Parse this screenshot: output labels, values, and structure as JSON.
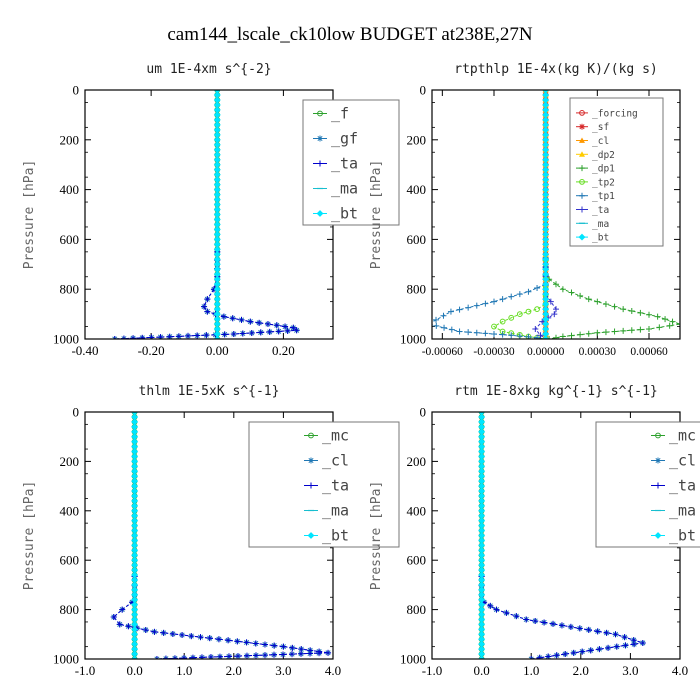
{
  "figure": {
    "title": "cam144_lscale_ck10low  BUDGET at238E,27N"
  },
  "chart_data": [
    {
      "type": "line",
      "title": "um  1E-4xm s^{-2}",
      "ylabel": "Pressure [hPa]",
      "xlim": [
        -0.4,
        0.35
      ],
      "ylim": [
        0,
        1000
      ],
      "y_reversed": true,
      "xticks": [
        -0.4,
        -0.2,
        0.0,
        0.2
      ],
      "xtick_labels": [
        "-0.40",
        "-0.20",
        "0.00",
        "0.20"
      ],
      "yticks": [
        0,
        200,
        400,
        600,
        800,
        1000
      ],
      "legend_style": "large",
      "series": [
        {
          "name": "_f",
          "color": "#2ca02c",
          "marker": "circle",
          "x": [
            0,
            0
          ],
          "y": [
            0,
            1000
          ]
        },
        {
          "name": "_gf",
          "color": "#1f77b4",
          "marker": "star",
          "x": [
            0,
            0,
            0,
            0,
            0,
            -0.01,
            -0.03,
            -0.04,
            -0.03,
            0.02,
            0.1,
            0.18,
            0.23,
            0.24,
            0.05,
            -0.31
          ],
          "y": [
            0,
            300,
            500,
            650,
            750,
            800,
            840,
            870,
            890,
            910,
            930,
            945,
            955,
            965,
            980,
            1000
          ]
        },
        {
          "name": "_ta",
          "color": "#0000cc",
          "marker": "plus",
          "x": [
            0,
            0,
            0,
            0,
            0,
            -0.01,
            -0.03,
            -0.04,
            -0.03,
            0.02,
            0.1,
            0.18,
            0.23,
            0.24,
            0.05,
            -0.31
          ],
          "y": [
            0,
            300,
            500,
            650,
            750,
            800,
            840,
            870,
            890,
            910,
            930,
            945,
            955,
            965,
            980,
            1000
          ]
        },
        {
          "name": "_ma",
          "color": "#17becf",
          "marker": "dash",
          "x": [
            0,
            0
          ],
          "y": [
            0,
            1000
          ]
        },
        {
          "name": "_bt",
          "color": "#00e5ff",
          "marker": "diamond",
          "x": [
            0,
            0
          ],
          "y": [
            0,
            1000
          ]
        }
      ]
    },
    {
      "type": "line",
      "title": "rtpthlp  1E-4x(kg K)/(kg s)",
      "ylabel": "Pressure [hPa]",
      "xlim": [
        -0.00066,
        0.00078
      ],
      "ylim": [
        0,
        1000
      ],
      "y_reversed": true,
      "xticks": [
        -0.0006,
        -0.0003,
        0.0,
        0.0003,
        0.0006
      ],
      "xtick_labels": [
        "-0.00060",
        "-0.00030",
        "0.00000",
        "0.00030",
        "0.00060"
      ],
      "yticks": [
        0,
        200,
        400,
        600,
        800,
        1000
      ],
      "legend_style": "small",
      "series": [
        {
          "name": "_forcing",
          "color": "#d62728",
          "marker": "circle",
          "x": [
            0,
            0
          ],
          "y": [
            0,
            1000
          ]
        },
        {
          "name": "_sf",
          "color": "#d62728",
          "marker": "star",
          "x": [
            0,
            0
          ],
          "y": [
            0,
            1000
          ]
        },
        {
          "name": "_cl",
          "color": "#ff9900",
          "marker": "triangle",
          "x": [
            0,
            0
          ],
          "y": [
            0,
            1000
          ]
        },
        {
          "name": "_dp2",
          "color": "#ffcc00",
          "marker": "triangle",
          "x": [
            0,
            0
          ],
          "y": [
            0,
            1000
          ]
        },
        {
          "name": "_dp1",
          "color": "#2ca02c",
          "marker": "plus",
          "x": [
            0,
            0.0,
            2e-05,
            0.0001,
            0.00025,
            0.00045,
            0.00065,
            0.00078,
            0.0006,
            0.0003,
            0.0001,
            2e-05
          ],
          "y": [
            0,
            720,
            760,
            800,
            840,
            880,
            910,
            940,
            960,
            975,
            990,
            1000
          ]
        },
        {
          "name": "_tp2",
          "color": "#66dd22",
          "marker": "circle",
          "x": [
            0,
            0,
            -5e-05,
            -0.00015,
            -0.00025,
            -0.0003,
            -0.00025,
            -0.0001,
            0
          ],
          "y": [
            0,
            860,
            880,
            900,
            930,
            950,
            970,
            990,
            1000
          ]
        },
        {
          "name": "_tp1",
          "color": "#1f77b4",
          "marker": "plus",
          "x": [
            0,
            0,
            -0.0001,
            -0.0003,
            -0.00055,
            -0.00068,
            -0.0005,
            -0.0002,
            -5e-05,
            0
          ],
          "y": [
            0,
            780,
            810,
            850,
            890,
            940,
            970,
            985,
            995,
            1000
          ]
        },
        {
          "name": "_ta",
          "color": "#3333cc",
          "marker": "plus",
          "x": [
            0,
            0,
            3e-05,
            6e-05,
            5e-05,
            -2e-05,
            -6e-05,
            -3e-05,
            0
          ],
          "y": [
            0,
            820,
            850,
            880,
            900,
            930,
            960,
            985,
            1000
          ]
        },
        {
          "name": "_ma",
          "color": "#17becf",
          "marker": "dash",
          "x": [
            0,
            0
          ],
          "y": [
            0,
            1000
          ]
        },
        {
          "name": "_bt",
          "color": "#00e5ff",
          "marker": "diamond",
          "x": [
            0,
            0
          ],
          "y": [
            0,
            1000
          ]
        }
      ]
    },
    {
      "type": "line",
      "title": "thlm  1E-5xK s^{-1}",
      "ylabel": "Pressure [hPa]",
      "xlim": [
        -1.0,
        4.0
      ],
      "ylim": [
        0,
        1000
      ],
      "y_reversed": true,
      "xticks": [
        -1.0,
        0.0,
        1.0,
        2.0,
        3.0,
        4.0
      ],
      "xtick_labels": [
        "-1.0",
        "0.0",
        "1.0",
        "2.0",
        "3.0",
        "4.0"
      ],
      "yticks": [
        0,
        200,
        400,
        600,
        800,
        1000
      ],
      "legend_style": "large",
      "series": [
        {
          "name": "_mc",
          "color": "#2ca02c",
          "marker": "circle",
          "x": [
            0,
            0
          ],
          "y": [
            0,
            1000
          ]
        },
        {
          "name": "_cl",
          "color": "#1f77b4",
          "marker": "star",
          "x": [
            0,
            0,
            -0.05,
            -0.25,
            -0.42,
            -0.3,
            0.4,
            1.7,
            3.0,
            3.9,
            0.45
          ],
          "y": [
            0,
            740,
            770,
            800,
            830,
            860,
            890,
            920,
            950,
            975,
            1000
          ]
        },
        {
          "name": "_ta",
          "color": "#0000cc",
          "marker": "plus",
          "x": [
            0,
            0,
            -0.05,
            -0.25,
            -0.42,
            -0.3,
            0.4,
            1.7,
            3.0,
            3.9,
            0.45
          ],
          "y": [
            0,
            740,
            770,
            800,
            830,
            860,
            890,
            920,
            950,
            975,
            1000
          ]
        },
        {
          "name": "_ma",
          "color": "#17becf",
          "marker": "dash",
          "x": [
            0,
            0
          ],
          "y": [
            0,
            1000
          ]
        },
        {
          "name": "_bt",
          "color": "#00e5ff",
          "marker": "diamond",
          "x": [
            0,
            0
          ],
          "y": [
            0,
            1000
          ]
        }
      ]
    },
    {
      "type": "line",
      "title": "rtm  1E-8xkg kg^{-1} s^{-1}",
      "ylabel": "Pressure [hPa]",
      "xlim": [
        -1.0,
        4.0
      ],
      "ylim": [
        0,
        1000
      ],
      "y_reversed": true,
      "xticks": [
        -1.0,
        0.0,
        1.0,
        2.0,
        3.0,
        4.0
      ],
      "xtick_labels": [
        "-1.0",
        "0.0",
        "1.0",
        "2.0",
        "3.0",
        "4.0"
      ],
      "yticks": [
        0,
        200,
        400,
        600,
        800,
        1000
      ],
      "legend_style": "large",
      "series": [
        {
          "name": "_mc",
          "color": "#2ca02c",
          "marker": "circle",
          "x": [
            0,
            0
          ],
          "y": [
            0,
            1000
          ]
        },
        {
          "name": "_cl",
          "color": "#1f77b4",
          "marker": "star",
          "x": [
            0,
            0,
            0.05,
            0.3,
            0.9,
            1.8,
            2.7,
            3.25,
            2.2,
            1.0
          ],
          "y": [
            0,
            740,
            770,
            800,
            840,
            870,
            900,
            935,
            965,
            1000
          ]
        },
        {
          "name": "_ta",
          "color": "#0000cc",
          "marker": "plus",
          "x": [
            0,
            0,
            0.05,
            0.3,
            0.9,
            1.8,
            2.7,
            3.25,
            2.2,
            1.0
          ],
          "y": [
            0,
            740,
            770,
            800,
            840,
            870,
            900,
            935,
            965,
            1000
          ]
        },
        {
          "name": "_ma",
          "color": "#17becf",
          "marker": "dash",
          "x": [
            0,
            0
          ],
          "y": [
            0,
            1000
          ]
        },
        {
          "name": "_bt",
          "color": "#00e5ff",
          "marker": "diamond",
          "x": [
            0,
            0
          ],
          "y": [
            0,
            1000
          ]
        }
      ]
    }
  ]
}
